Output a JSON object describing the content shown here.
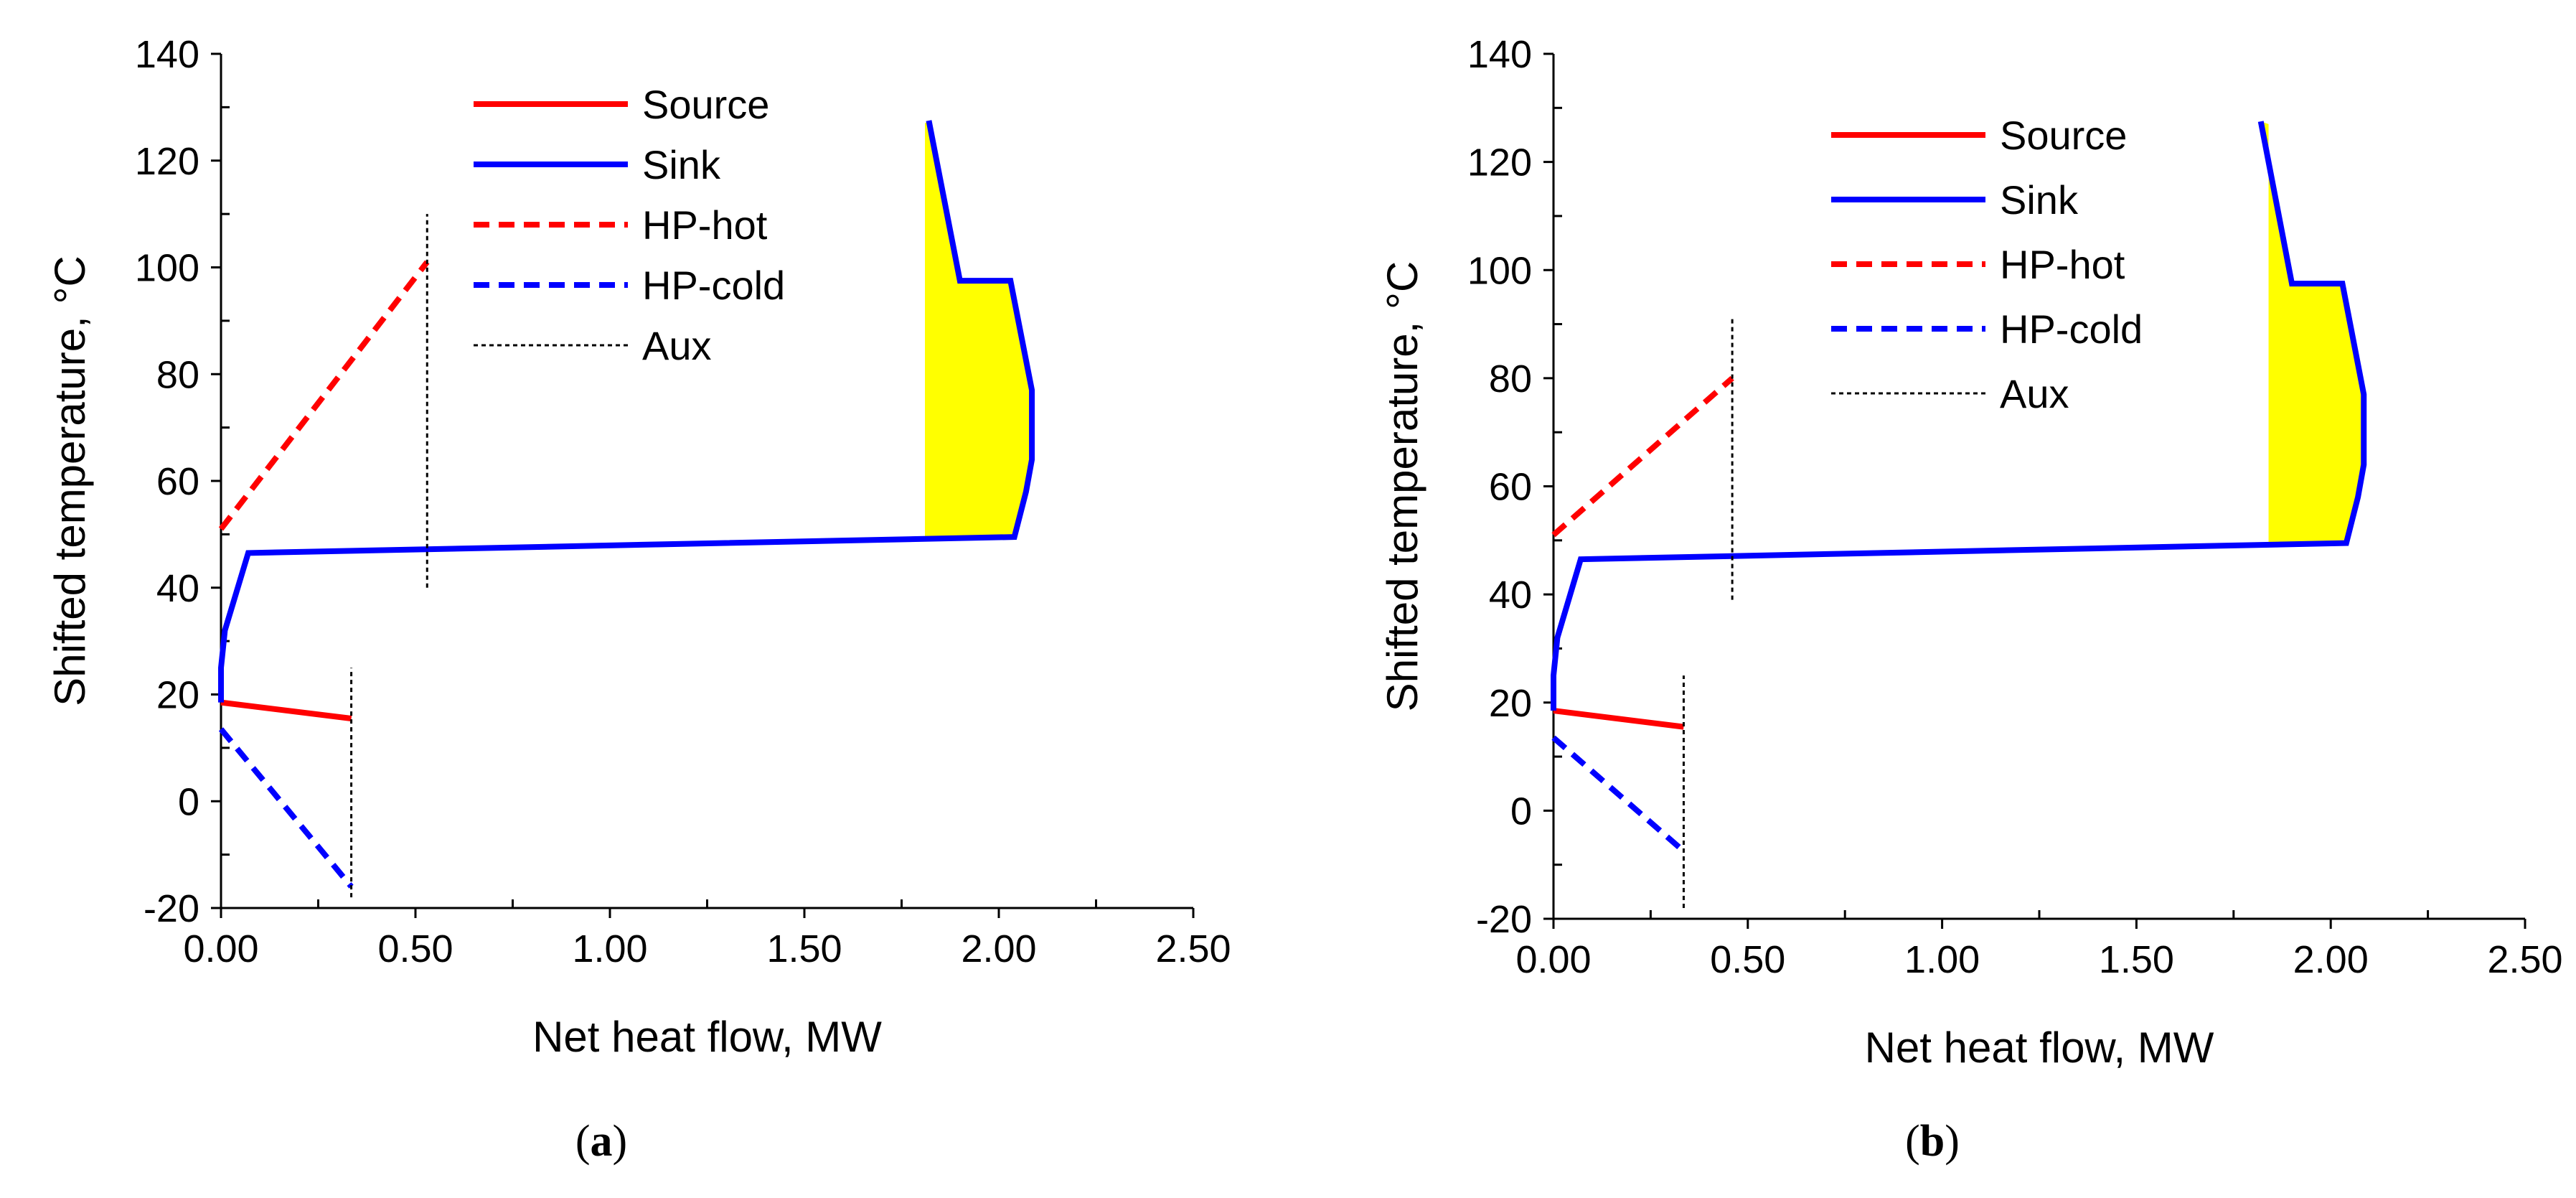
{
  "chart_data": [
    {
      "id": "a",
      "type": "line",
      "panel_label_open": "(",
      "panel_label": "a",
      "panel_label_close": ")",
      "xlabel": "Net heat flow, MW",
      "ylabel": "Shifted  temperature, °C",
      "xlim": [
        0,
        2.5
      ],
      "ylim": [
        -20,
        140
      ],
      "xticks": [
        0,
        0.5,
        1.0,
        1.5,
        2.0,
        2.5
      ],
      "xtick_labels": [
        "0.00",
        "0.50",
        "1.00",
        "1.50",
        "2.00",
        "2.50"
      ],
      "yticks": [
        -20,
        0,
        20,
        40,
        60,
        80,
        100,
        120,
        140
      ],
      "ytick_labels": [
        "-20",
        "0",
        "20",
        "40",
        "60",
        "80",
        "100",
        "120",
        "140"
      ],
      "legend_position": "top-center",
      "series": [
        {
          "name": "Source",
          "color": "#ff0000",
          "dash": "solid",
          "x": [
            0.0,
            0.335
          ],
          "y": [
            18.5,
            15.5
          ]
        },
        {
          "name": "Sink",
          "color": "#0000ff",
          "dash": "solid",
          "x": [
            0.0,
            0.0,
            0.01,
            0.07,
            2.04,
            2.07,
            2.085,
            2.085,
            2.03,
            1.9,
            1.82
          ],
          "y": [
            18.5,
            25,
            32,
            46.5,
            49.5,
            58,
            64,
            77,
            97.5,
            97.5,
            127.5
          ]
        },
        {
          "name": "HP-hot",
          "color": "#ff0000",
          "dash": "dashed",
          "x": [
            0.0,
            0.53
          ],
          "y": [
            51,
            101
          ]
        },
        {
          "name": "HP-cold",
          "color": "#0000ff",
          "dash": "dashed",
          "x": [
            0.0,
            0.335
          ],
          "y": [
            13.5,
            -16
          ]
        },
        {
          "name": "Aux",
          "color": "#000000",
          "dash": "dotted",
          "segments": [
            {
              "x": [
                0.53,
                0.53
              ],
              "y": [
                40,
                110
              ]
            },
            {
              "x": [
                0.335,
                0.335
              ],
              "y": [
                -18,
                25
              ]
            }
          ]
        }
      ],
      "fill_region": {
        "color": "#ffff00",
        "x": [
          1.81,
          1.82,
          1.9,
          2.03,
          2.085,
          2.085,
          2.07,
          2.04,
          1.81
        ],
        "y": [
          127,
          127.5,
          97.5,
          97.5,
          77,
          64,
          58,
          49.5,
          49.5
        ]
      }
    },
    {
      "id": "b",
      "type": "line",
      "panel_label_open": "(",
      "panel_label": "b",
      "panel_label_close": ")",
      "xlabel": "Net heat flow, MW",
      "ylabel": "Shifted  temperature, °C",
      "xlim": [
        0,
        2.5
      ],
      "ylim": [
        -20,
        140
      ],
      "xticks": [
        0,
        0.5,
        1.0,
        1.5,
        2.0,
        2.5
      ],
      "xtick_labels": [
        "0.00",
        "0.50",
        "1.00",
        "1.50",
        "2.00",
        "2.50"
      ],
      "yticks": [
        -20,
        0,
        20,
        40,
        60,
        80,
        100,
        120,
        140
      ],
      "ytick_labels": [
        "-20",
        "0",
        "20",
        "40",
        "60",
        "80",
        "100",
        "120",
        "140"
      ],
      "legend_position": "top-center",
      "series": [
        {
          "name": "Source",
          "color": "#ff0000",
          "dash": "solid",
          "x": [
            0.0,
            0.335
          ],
          "y": [
            18.5,
            15.5
          ]
        },
        {
          "name": "Sink",
          "color": "#0000ff",
          "dash": "solid",
          "x": [
            0.0,
            0.0,
            0.01,
            0.07,
            2.04,
            2.07,
            2.085,
            2.085,
            2.03,
            1.9,
            1.82
          ],
          "y": [
            18.5,
            25,
            32,
            46.5,
            49.5,
            58,
            64,
            77,
            97.5,
            97.5,
            127.5
          ]
        },
        {
          "name": "HP-hot",
          "color": "#ff0000",
          "dash": "dashed",
          "x": [
            0.0,
            0.46
          ],
          "y": [
            51,
            80
          ]
        },
        {
          "name": "HP-cold",
          "color": "#0000ff",
          "dash": "dashed",
          "x": [
            0.0,
            0.335
          ],
          "y": [
            13.5,
            -7.5
          ]
        },
        {
          "name": "Aux",
          "color": "#000000",
          "dash": "dotted",
          "segments": [
            {
              "x": [
                0.46,
                0.46
              ],
              "y": [
                39,
                91
              ]
            },
            {
              "x": [
                0.335,
                0.335
              ],
              "y": [
                -18,
                25
              ]
            }
          ]
        }
      ],
      "fill_region": {
        "color": "#ffff00",
        "x": [
          1.84,
          1.82,
          1.9,
          2.03,
          2.085,
          2.085,
          2.07,
          2.04,
          1.84
        ],
        "y": [
          127,
          127.5,
          97.5,
          97.5,
          77,
          64,
          58,
          49.5,
          49.5
        ]
      }
    }
  ]
}
